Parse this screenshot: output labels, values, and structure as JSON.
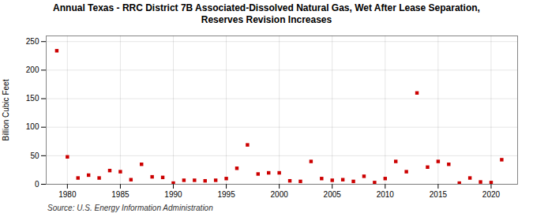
{
  "chart_data": {
    "type": "scatter",
    "title": "Annual Texas - RRC District 7B Associated-Dissolved Natural Gas, Wet After Lease Separation,\nReserves Revision Increases",
    "ylabel": "Billion Cubic Feet",
    "source": "Source: U.S. Energy Information Administration",
    "x": [
      1979,
      1980,
      1981,
      1982,
      1983,
      1984,
      1985,
      1986,
      1987,
      1988,
      1989,
      1990,
      1991,
      1992,
      1993,
      1994,
      1995,
      1996,
      1997,
      1998,
      1999,
      2000,
      2001,
      2002,
      2003,
      2004,
      2005,
      2006,
      2007,
      2008,
      2009,
      2010,
      2011,
      2012,
      2013,
      2014,
      2015,
      2016,
      2017,
      2018,
      2019,
      2020,
      2021
    ],
    "values": [
      234,
      48,
      11,
      16,
      11,
      24,
      22,
      8,
      35,
      13,
      12,
      2,
      7,
      7,
      6,
      7,
      10,
      28,
      69,
      18,
      20,
      20,
      6,
      5,
      40,
      10,
      7,
      8,
      5,
      14,
      3,
      10,
      40,
      22,
      160,
      30,
      40,
      35,
      2,
      11,
      4,
      3,
      43
    ],
    "color": "#cc0000",
    "marker": "square",
    "xlim": [
      1978,
      2022.5
    ],
    "ylim": [
      0,
      260
    ],
    "xticks": [
      1980,
      1985,
      1990,
      1995,
      2000,
      2005,
      2010,
      2015,
      2020
    ],
    "yticks": [
      0,
      50,
      100,
      150,
      200,
      250
    ],
    "grid": true
  }
}
